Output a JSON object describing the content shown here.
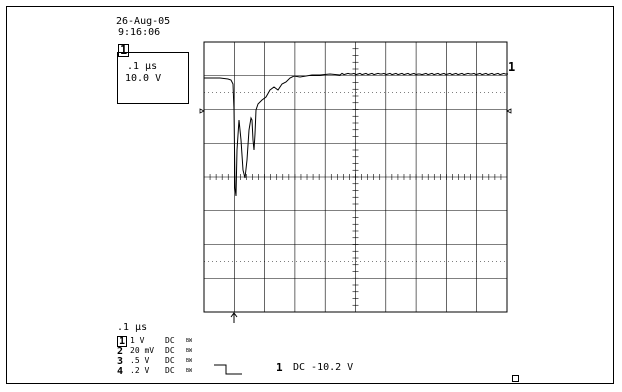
{
  "header": {
    "date": "26-Aug-05",
    "time": "9:16:06"
  },
  "settings_box": {
    "channel_marker": "1",
    "timebase": ".1 μs",
    "volts": "10.0 V"
  },
  "scope": {
    "channel_label": "1",
    "trace_color": "#000000"
  },
  "footer": {
    "timebase": ".1 μs",
    "channels": [
      {
        "num": "1",
        "scale": "1",
        "unit": "V",
        "coupling": "DC",
        "bw": "BW"
      },
      {
        "num": "2",
        "scale": "20",
        "unit": "mV",
        "coupling": "DC",
        "bw": "BW"
      },
      {
        "num": "3",
        "scale": ".5",
        "unit": "V",
        "coupling": "DC",
        "bw": "BW"
      },
      {
        "num": "4",
        "scale": ".2",
        "unit": "V",
        "coupling": "DC",
        "bw": "BW"
      }
    ],
    "trigger_channel": "1",
    "trigger_text": "DC -10.2 V",
    "trigger_icon": "falling-edge-icon",
    "corner_icon": "square-icon"
  }
}
